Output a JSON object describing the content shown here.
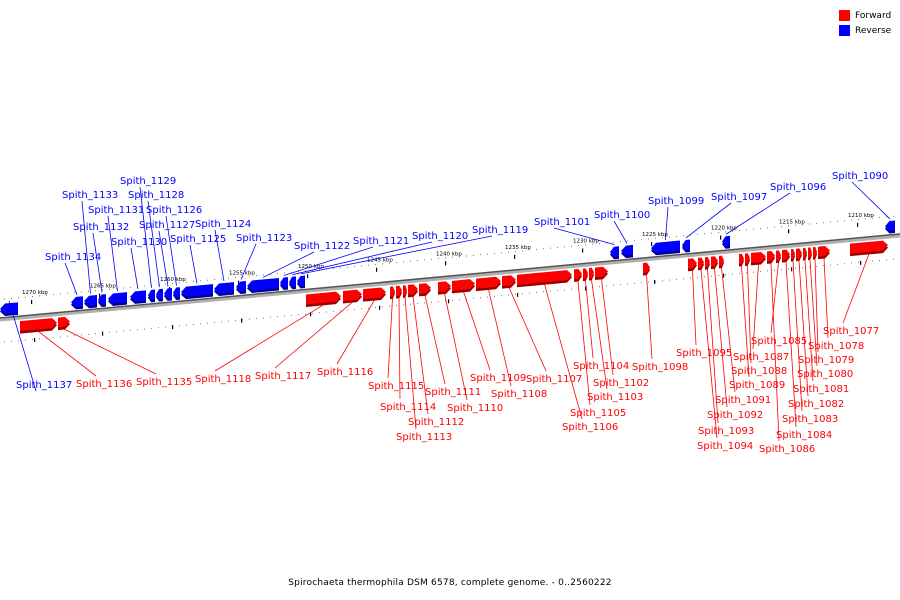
{
  "legend": {
    "forward_label": "Forward",
    "reverse_label": "Reverse",
    "forward_color": "#ff0000",
    "reverse_color": "#0000ff"
  },
  "caption": "Spirochaeta thermophila DSM 6578, complete genome. - 0..2560222",
  "scale_labels": [
    "1270 kbp",
    "1265 kbp",
    "1260 kbp",
    "1255 kbp",
    "1250 kbp",
    "1245 kbp",
    "1240 kbp",
    "1235 kbp",
    "1230 kbp",
    "1225 kbp",
    "1220 kbp",
    "1215 kbp",
    "1210 kbp"
  ],
  "genes": [
    {
      "name": "Spith_1137",
      "strand": "reverse"
    },
    {
      "name": "Spith_1136",
      "strand": "forward"
    },
    {
      "name": "Spith_1135",
      "strand": "forward"
    },
    {
      "name": "Spith_1134",
      "strand": "reverse"
    },
    {
      "name": "Spith_1133",
      "strand": "reverse"
    },
    {
      "name": "Spith_1132",
      "strand": "reverse"
    },
    {
      "name": "Spith_1131",
      "strand": "reverse"
    },
    {
      "name": "Spith_1130",
      "strand": "reverse"
    },
    {
      "name": "Spith_1129",
      "strand": "reverse"
    },
    {
      "name": "Spith_1128",
      "strand": "reverse"
    },
    {
      "name": "Spith_1127",
      "strand": "reverse"
    },
    {
      "name": "Spith_1126",
      "strand": "reverse"
    },
    {
      "name": "Spith_1125",
      "strand": "reverse"
    },
    {
      "name": "Spith_1124",
      "strand": "reverse"
    },
    {
      "name": "Spith_1123",
      "strand": "reverse"
    },
    {
      "name": "Spith_1122",
      "strand": "reverse"
    },
    {
      "name": "Spith_1121",
      "strand": "reverse"
    },
    {
      "name": "Spith_1120",
      "strand": "reverse"
    },
    {
      "name": "Spith_1119",
      "strand": "reverse"
    },
    {
      "name": "Spith_1118",
      "strand": "forward"
    },
    {
      "name": "Spith_1117",
      "strand": "forward"
    },
    {
      "name": "Spith_1116",
      "strand": "forward"
    },
    {
      "name": "Spith_1115",
      "strand": "forward"
    },
    {
      "name": "Spith_1114",
      "strand": "forward"
    },
    {
      "name": "Spith_1113",
      "strand": "forward"
    },
    {
      "name": "Spith_1112",
      "strand": "forward"
    },
    {
      "name": "Spith_1111",
      "strand": "forward"
    },
    {
      "name": "Spith_1110",
      "strand": "forward"
    },
    {
      "name": "Spith_1109",
      "strand": "forward"
    },
    {
      "name": "Spith_1108",
      "strand": "forward"
    },
    {
      "name": "Spith_1107",
      "strand": "forward"
    },
    {
      "name": "Spith_1106",
      "strand": "forward"
    },
    {
      "name": "Spith_1105",
      "strand": "forward"
    },
    {
      "name": "Spith_1104",
      "strand": "forward"
    },
    {
      "name": "Spith_1103",
      "strand": "forward"
    },
    {
      "name": "Spith_1102",
      "strand": "forward"
    },
    {
      "name": "Spith_1101",
      "strand": "reverse"
    },
    {
      "name": "Spith_1100",
      "strand": "reverse"
    },
    {
      "name": "Spith_1099",
      "strand": "reverse"
    },
    {
      "name": "Spith_1098",
      "strand": "forward"
    },
    {
      "name": "Spith_1097",
      "strand": "reverse"
    },
    {
      "name": "Spith_1096",
      "strand": "reverse"
    },
    {
      "name": "Spith_1095",
      "strand": "forward"
    },
    {
      "name": "Spith_1094",
      "strand": "forward"
    },
    {
      "name": "Spith_1093",
      "strand": "forward"
    },
    {
      "name": "Spith_1092",
      "strand": "forward"
    },
    {
      "name": "Spith_1091",
      "strand": "forward"
    },
    {
      "name": "Spith_1090",
      "strand": "reverse"
    },
    {
      "name": "Spith_1089",
      "strand": "forward"
    },
    {
      "name": "Spith_1088",
      "strand": "forward"
    },
    {
      "name": "Spith_1087",
      "strand": "forward"
    },
    {
      "name": "Spith_1086",
      "strand": "forward"
    },
    {
      "name": "Spith_1085",
      "strand": "forward"
    },
    {
      "name": "Spith_1084",
      "strand": "forward"
    },
    {
      "name": "Spith_1083",
      "strand": "forward"
    },
    {
      "name": "Spith_1082",
      "strand": "forward"
    },
    {
      "name": "Spith_1081",
      "strand": "forward"
    },
    {
      "name": "Spith_1080",
      "strand": "forward"
    },
    {
      "name": "Spith_1079",
      "strand": "forward"
    },
    {
      "name": "Spith_1078",
      "strand": "forward"
    },
    {
      "name": "Spith_1077",
      "strand": "forward"
    }
  ]
}
